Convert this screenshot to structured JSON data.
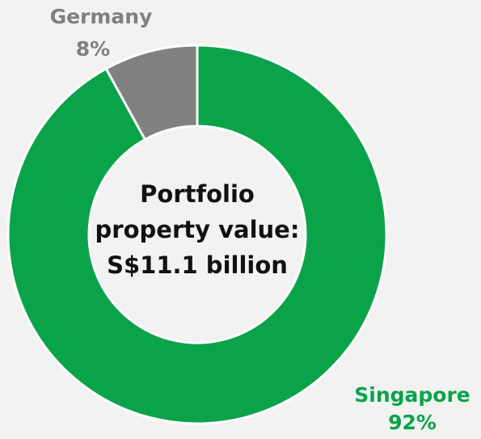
{
  "chart_data": {
    "type": "pie",
    "categories": [
      "Singapore",
      "Germany"
    ],
    "values": [
      92,
      8
    ],
    "value_labels": [
      "92%",
      "8%"
    ],
    "colors": [
      "#0aa34a",
      "#808080"
    ],
    "center_text": [
      "Portfolio",
      "property value:",
      "S$11.1 billion"
    ]
  }
}
